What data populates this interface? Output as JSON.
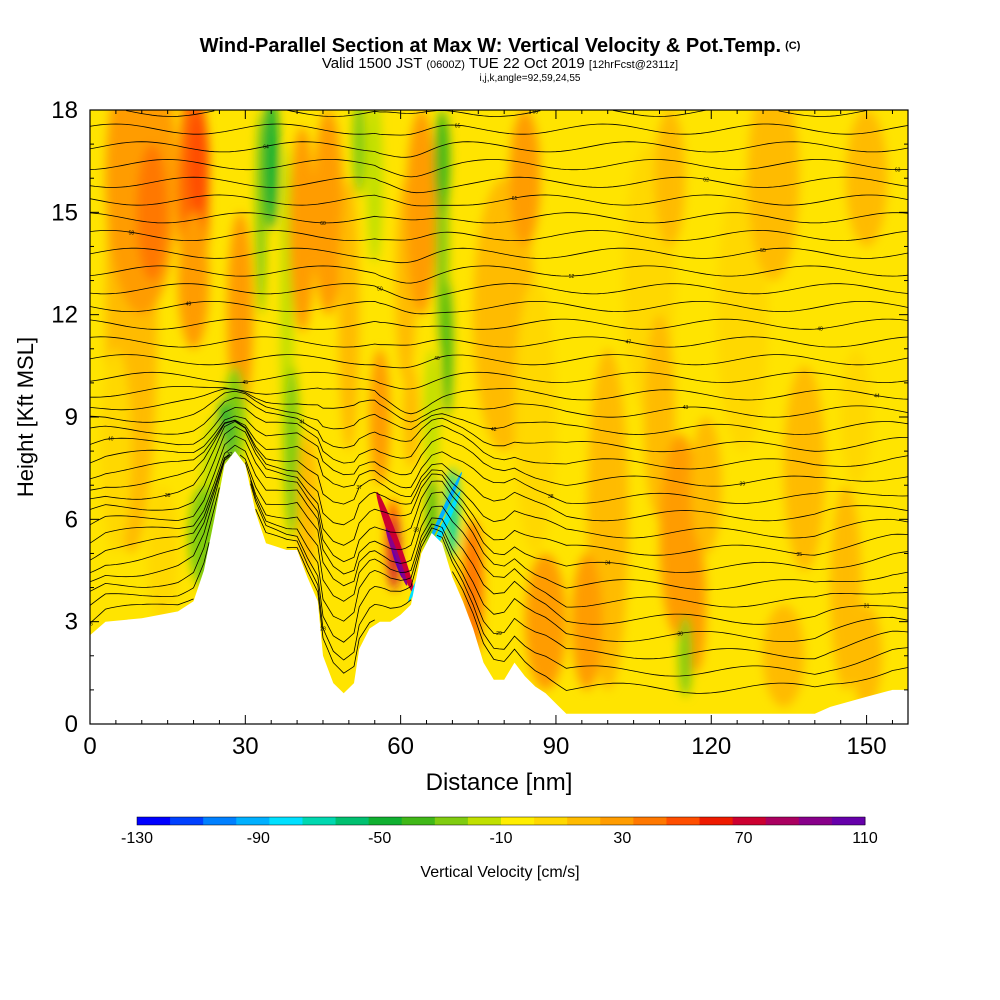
{
  "title": {
    "main": "Wind-Parallel Section at Max W: Vertical Velocity & Pot.Temp.",
    "mark": "(C)",
    "valid_prefix": "Valid 1500 JST",
    "valid_small": "(0600Z)",
    "valid_date": "TUE 22 Oct 2019",
    "valid_fcst": "[12hrFcst@2311z]",
    "indices": "i,j,k,angle=92,59,24,55"
  },
  "chart_data": {
    "type": "heatmap",
    "xlabel": "Distance [nm]",
    "ylabel": "Height [Kft MSL]",
    "xlim": [
      0,
      158
    ],
    "ylim": [
      0,
      18
    ],
    "xticks": [
      0,
      30,
      60,
      90,
      120,
      150
    ],
    "yticks": [
      0,
      3,
      6,
      9,
      12,
      15,
      18
    ],
    "colorbar": {
      "label": "Vertical Velocity [cm/s]",
      "ticks": [
        -130,
        -90,
        -50,
        -10,
        30,
        70,
        110
      ],
      "colors": [
        "#0000ff",
        "#0040ff",
        "#0080ff",
        "#00b0ff",
        "#00e0ff",
        "#00d8b0",
        "#00c070",
        "#10b030",
        "#40b818",
        "#80cc10",
        "#c0e000",
        "#ffee00",
        "#ffd800",
        "#ffbb00",
        "#ff9c00",
        "#ff7800",
        "#ff4e00",
        "#ee1a00",
        "#cc0030",
        "#aa0060",
        "#88008a",
        "#6600aa"
      ]
    },
    "terrain": [
      [
        0,
        2.6
      ],
      [
        3,
        3
      ],
      [
        10,
        3.1
      ],
      [
        17,
        3.3
      ],
      [
        20,
        3.6
      ],
      [
        22,
        4.5
      ],
      [
        24,
        6
      ],
      [
        26,
        7.6
      ],
      [
        28,
        8
      ],
      [
        30,
        7.6
      ],
      [
        32,
        6.2
      ],
      [
        34,
        5.3
      ],
      [
        36,
        5.2
      ],
      [
        38,
        5.1
      ],
      [
        40,
        5.1
      ],
      [
        42,
        4.3
      ],
      [
        44,
        3.6
      ],
      [
        45,
        2
      ],
      [
        47,
        1.2
      ],
      [
        49,
        0.9
      ],
      [
        51,
        1.2
      ],
      [
        52,
        2.2
      ],
      [
        54,
        2.8
      ],
      [
        56,
        3
      ],
      [
        58,
        3
      ],
      [
        60,
        3.2
      ],
      [
        62,
        3.5
      ],
      [
        64,
        5
      ],
      [
        66,
        5.6
      ],
      [
        68,
        5.3
      ],
      [
        70,
        4.3
      ],
      [
        72,
        3.6
      ],
      [
        74,
        2.8
      ],
      [
        76,
        1.8
      ],
      [
        78,
        1.3
      ],
      [
        80,
        1.3
      ],
      [
        82,
        1.8
      ],
      [
        84,
        1.4
      ],
      [
        86,
        1.1
      ],
      [
        88,
        0.9
      ],
      [
        90,
        0.6
      ],
      [
        92,
        0.3
      ],
      [
        95,
        0.3
      ],
      [
        100,
        0.3
      ],
      [
        110,
        0.3
      ],
      [
        125,
        0.3
      ],
      [
        140,
        0.3
      ],
      [
        143,
        0.5
      ],
      [
        150,
        0.8
      ],
      [
        155,
        1
      ],
      [
        158,
        1
      ]
    ],
    "potential_temperature_contours": 34,
    "contour_labels": [
      "26",
      "28",
      "29",
      "30",
      "31",
      "32",
      "33",
      "34",
      "35",
      "36",
      "37",
      "38",
      "39",
      "40",
      "41",
      "42",
      "43",
      "44",
      "45",
      "46",
      "47",
      "48",
      "49",
      "50",
      "52",
      "55",
      "58",
      "60",
      "61",
      "62",
      "63",
      "64",
      "65",
      "66"
    ]
  }
}
